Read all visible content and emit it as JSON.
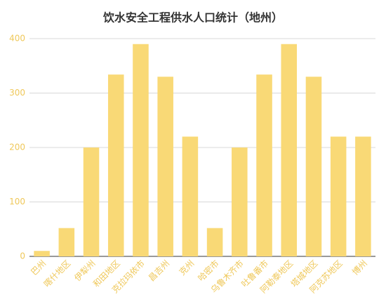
{
  "chart_data": {
    "type": "bar",
    "title": "饮水安全工程供水人口统计（地州）",
    "categories": [
      "巴州",
      "喀什地区",
      "伊犁州",
      "和田地区",
      "克拉玛依市",
      "昌吉州",
      "克州",
      "哈密市",
      "乌鲁木齐市",
      "吐鲁番市",
      "阿勒泰地区",
      "塔城地区",
      "阿克苏地区",
      "博州"
    ],
    "values": [
      10,
      52,
      200,
      334,
      390,
      330,
      220,
      52,
      200,
      334,
      390,
      330,
      220,
      220
    ],
    "color": "#f9d976",
    "ylim": [
      0,
      400
    ],
    "yticks": [
      0,
      100,
      200,
      300,
      400
    ],
    "grid": true
  }
}
